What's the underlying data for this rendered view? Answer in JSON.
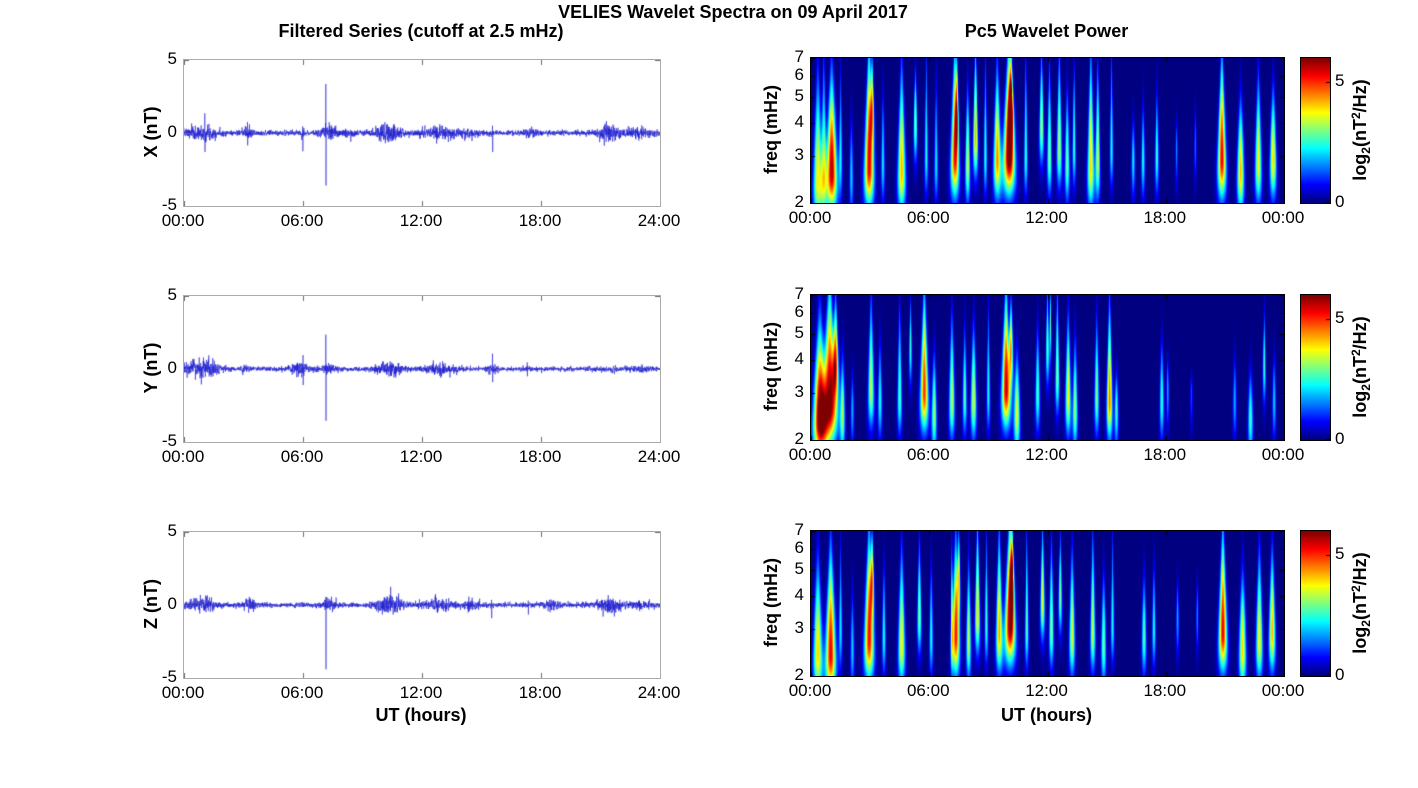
{
  "figure": {
    "title": "VELIES Wavelet Spectra on 09 April 2017"
  },
  "left_column": {
    "title": "Filtered Series (cutoff at 2.5 mHz)",
    "xlabel": "UT (hours)",
    "xticks": [
      "00:00",
      "06:00",
      "12:00",
      "18:00",
      "24:00"
    ],
    "yticks": [
      "5",
      "0",
      "-5"
    ],
    "ylim_nT": [
      -5,
      5
    ],
    "line_color": "#1d1dd0"
  },
  "right_column": {
    "title": "Pc5 Wavelet Power",
    "xlabel": "UT (hours)",
    "xticks": [
      "00:00",
      "06:00",
      "12:00",
      "18:00",
      "00:00"
    ],
    "ylabel": "freq (mHz)",
    "yticks": [
      "7",
      "6",
      "5",
      "4",
      "3",
      "2"
    ],
    "freq_range_mhz": [
      2,
      7
    ],
    "yscale": "log",
    "colorbar": {
      "ticks": [
        "5",
        "0"
      ],
      "tick_values": [
        5,
        0
      ],
      "clim": [
        0,
        6
      ],
      "colormap": "jet",
      "label_parts": {
        "base": "log",
        "sub": "2",
        "mid": "(nT",
        "sup": "2",
        "tail": "/Hz)"
      }
    }
  },
  "chart_data": [
    {
      "name": "X filtered series",
      "type": "line",
      "component": "X",
      "ylabel": "X (nT)",
      "ylim": [
        -5,
        5
      ],
      "x_range_hours": [
        0,
        24
      ],
      "noise_std_nT": 0.085,
      "bursts_t_sigma_amp": [
        [
          0.9,
          0.5,
          0.22
        ],
        [
          3.2,
          0.15,
          0.18
        ],
        [
          6.0,
          0.05,
          0.12
        ],
        [
          7.3,
          0.25,
          0.22
        ],
        [
          8.3,
          0.2,
          0.12
        ],
        [
          10.4,
          0.45,
          0.28
        ],
        [
          12.9,
          0.6,
          0.15
        ],
        [
          14.3,
          0.3,
          0.12
        ],
        [
          17.5,
          0.3,
          0.08
        ],
        [
          21.4,
          0.4,
          0.24
        ],
        [
          22.9,
          0.5,
          0.12
        ]
      ],
      "spikes_t_up_down_nT": [
        [
          1.05,
          1.35,
          -1.3
        ],
        [
          3.2,
          0.75,
          -0.85
        ],
        [
          5.98,
          0.45,
          -1.25
        ],
        [
          7.15,
          3.35,
          -3.6
        ],
        [
          15.55,
          0.5,
          -1.3
        ]
      ]
    },
    {
      "name": "Y filtered series",
      "type": "line",
      "component": "Y",
      "ylabel": "Y (nT)",
      "ylim": [
        -5,
        5
      ],
      "x_range_hours": [
        0,
        24
      ],
      "noise_std_nT": 0.075,
      "bursts_t_sigma_amp": [
        [
          0.9,
          0.55,
          0.35
        ],
        [
          3.1,
          0.2,
          0.1
        ],
        [
          5.8,
          0.3,
          0.18
        ],
        [
          7.3,
          0.25,
          0.15
        ],
        [
          10.4,
          0.4,
          0.22
        ],
        [
          12.9,
          0.6,
          0.15
        ],
        [
          15.5,
          0.15,
          0.15
        ],
        [
          21.5,
          0.3,
          0.06
        ],
        [
          23.0,
          0.4,
          0.06
        ]
      ],
      "spikes_t_up_down_nT": [
        [
          6.0,
          0.95,
          -1.1
        ],
        [
          7.15,
          2.35,
          -3.55
        ],
        [
          15.55,
          1.05,
          -0.9
        ],
        [
          17.3,
          0.45,
          -0.5
        ]
      ]
    },
    {
      "name": "Z filtered series",
      "type": "line",
      "component": "Z",
      "ylabel": "Z (nT)",
      "ylim": [
        -5,
        5
      ],
      "x_range_hours": [
        0,
        24
      ],
      "noise_std_nT": 0.085,
      "bursts_t_sigma_amp": [
        [
          0.9,
          0.5,
          0.2
        ],
        [
          3.3,
          0.2,
          0.2
        ],
        [
          7.3,
          0.25,
          0.2
        ],
        [
          10.4,
          0.45,
          0.3
        ],
        [
          12.8,
          0.5,
          0.15
        ],
        [
          14.4,
          0.3,
          0.12
        ],
        [
          18.5,
          0.25,
          0.15
        ],
        [
          21.4,
          0.4,
          0.22
        ],
        [
          22.9,
          0.4,
          0.1
        ]
      ],
      "spikes_t_up_down_nT": [
        [
          7.15,
          0.55,
          -4.4
        ],
        [
          15.5,
          0.35,
          -0.9
        ],
        [
          17.35,
          0.3,
          -0.65
        ]
      ]
    },
    {
      "name": "X Pc5 wavelet power",
      "type": "heatmap",
      "component": "X",
      "ylabel": "freq (mHz)",
      "freq_range_mhz": [
        2,
        7
      ],
      "x_range_hours": [
        0,
        24
      ],
      "power_clim_log2": [
        0,
        6
      ],
      "events_t_fpeak_power_width_ftop": [
        [
          0.35,
          2.4,
          3.8,
          0.18,
          5.5
        ],
        [
          0.65,
          2.6,
          3.0,
          0.12,
          6.5
        ],
        [
          1.05,
          2.6,
          5.8,
          0.22,
          5.5
        ],
        [
          1.5,
          3.0,
          2.2,
          0.08,
          6.0
        ],
        [
          2.05,
          2.5,
          2.0,
          0.08,
          4.0
        ],
        [
          2.95,
          2.7,
          5.4,
          0.2,
          7.2
        ],
        [
          3.1,
          4.6,
          3.6,
          0.12,
          7.0
        ],
        [
          3.65,
          2.8,
          2.2,
          0.08,
          5.0
        ],
        [
          4.6,
          2.6,
          4.2,
          0.16,
          6.0
        ],
        [
          5.3,
          4.0,
          3.2,
          0.1,
          6.0
        ],
        [
          5.85,
          3.0,
          2.4,
          0.08,
          7.2
        ],
        [
          6.35,
          2.8,
          2.2,
          0.08,
          5.5
        ],
        [
          7.3,
          2.9,
          5.0,
          0.18,
          7.2
        ],
        [
          7.4,
          4.3,
          3.8,
          0.1,
          7.0
        ],
        [
          7.95,
          2.8,
          3.6,
          0.1,
          5.0
        ],
        [
          8.35,
          3.5,
          4.2,
          0.12,
          7.2
        ],
        [
          8.85,
          3.0,
          2.5,
          0.08,
          6.5
        ],
        [
          9.45,
          2.9,
          4.4,
          0.16,
          6.0
        ],
        [
          10.05,
          3.0,
          6.2,
          0.26,
          7.2
        ],
        [
          10.15,
          4.5,
          4.6,
          0.14,
          7.0
        ],
        [
          10.9,
          3.0,
          2.6,
          0.08,
          7.0
        ],
        [
          11.7,
          3.9,
          3.4,
          0.12,
          7.0
        ],
        [
          12.1,
          3.0,
          3.2,
          0.1,
          6.0
        ],
        [
          12.6,
          3.2,
          3.4,
          0.12,
          7.0
        ],
        [
          13.0,
          2.8,
          3.0,
          0.1,
          5.0
        ],
        [
          13.35,
          3.2,
          2.6,
          0.08,
          6.5
        ],
        [
          14.2,
          2.7,
          4.0,
          0.14,
          7.0
        ],
        [
          14.55,
          2.9,
          3.6,
          0.1,
          6.0
        ],
        [
          15.25,
          3.2,
          2.4,
          0.08,
          7.0
        ],
        [
          16.35,
          2.9,
          2.2,
          0.08,
          4.0
        ],
        [
          16.85,
          2.9,
          2.4,
          0.08,
          4.5
        ],
        [
          17.55,
          3.0,
          2.6,
          0.08,
          5.0
        ],
        [
          18.55,
          3.2,
          1.6,
          0.06,
          4.0
        ],
        [
          19.5,
          3.3,
          1.4,
          0.06,
          4.5
        ],
        [
          20.85,
          2.9,
          5.4,
          0.18,
          6.5
        ],
        [
          21.8,
          2.6,
          4.2,
          0.14,
          4.5
        ],
        [
          22.7,
          2.8,
          3.8,
          0.14,
          5.5
        ],
        [
          23.45,
          2.9,
          4.0,
          0.14,
          5.0
        ]
      ]
    },
    {
      "name": "Y Pc5 wavelet power",
      "type": "heatmap",
      "component": "Y",
      "ylabel": "freq (mHz)",
      "freq_range_mhz": [
        2,
        7
      ],
      "x_range_hours": [
        0,
        24
      ],
      "power_clim_log2": [
        0,
        6
      ],
      "events_t_fpeak_power_width_ftop": [
        [
          0.45,
          2.4,
          6.0,
          0.25,
          5.0
        ],
        [
          0.95,
          2.7,
          6.0,
          0.3,
          6.8
        ],
        [
          1.25,
          3.9,
          4.4,
          0.15,
          6.5
        ],
        [
          1.6,
          2.5,
          3.0,
          0.1,
          4.0
        ],
        [
          2.1,
          2.6,
          1.8,
          0.07,
          3.5
        ],
        [
          3.05,
          3.1,
          3.4,
          0.14,
          6.5
        ],
        [
          3.5,
          2.8,
          2.4,
          0.09,
          4.5
        ],
        [
          4.5,
          2.9,
          2.8,
          0.1,
          6.0
        ],
        [
          5.05,
          4.5,
          2.6,
          0.09,
          6.5
        ],
        [
          5.75,
          3.0,
          5.0,
          0.18,
          6.8
        ],
        [
          6.25,
          2.5,
          3.2,
          0.1,
          4.0
        ],
        [
          7.15,
          2.8,
          3.4,
          0.12,
          5.5
        ],
        [
          7.8,
          2.9,
          2.8,
          0.09,
          5.0
        ],
        [
          8.25,
          2.8,
          3.6,
          0.12,
          5.0
        ],
        [
          9.0,
          3.0,
          2.4,
          0.08,
          6.0
        ],
        [
          9.9,
          3.1,
          5.6,
          0.2,
          6.8
        ],
        [
          10.15,
          4.4,
          4.2,
          0.12,
          6.5
        ],
        [
          10.45,
          2.5,
          3.6,
          0.12,
          4.0
        ],
        [
          11.5,
          3.0,
          2.8,
          0.1,
          5.0
        ],
        [
          12.0,
          4.5,
          3.0,
          0.1,
          7.2
        ],
        [
          12.15,
          5.5,
          2.8,
          0.08,
          7.2
        ],
        [
          12.5,
          3.5,
          3.2,
          0.1,
          7.0
        ],
        [
          13.05,
          2.9,
          3.8,
          0.12,
          5.5
        ],
        [
          13.4,
          2.6,
          3.2,
          0.1,
          4.5
        ],
        [
          14.5,
          2.9,
          3.0,
          0.1,
          5.5
        ],
        [
          15.15,
          2.8,
          4.6,
          0.12,
          6.0
        ],
        [
          15.5,
          2.6,
          2.6,
          0.08,
          3.5
        ],
        [
          17.8,
          2.8,
          2.6,
          0.09,
          4.5
        ],
        [
          18.1,
          3.1,
          1.8,
          0.06,
          4.0
        ],
        [
          19.3,
          3.0,
          1.2,
          0.06,
          3.5
        ],
        [
          21.5,
          2.8,
          1.8,
          0.08,
          4.0
        ],
        [
          22.3,
          2.4,
          2.6,
          0.1,
          3.5
        ],
        [
          23.0,
          3.8,
          2.6,
          0.08,
          5.8
        ],
        [
          23.5,
          2.8,
          2.0,
          0.08,
          4.0
        ]
      ]
    },
    {
      "name": "Z Pc5 wavelet power",
      "type": "heatmap",
      "component": "Z",
      "ylabel": "freq (mHz)",
      "freq_range_mhz": [
        2,
        7
      ],
      "x_range_hours": [
        0,
        24
      ],
      "power_clim_log2": [
        0,
        6
      ],
      "events_t_fpeak_power_width_ftop": [
        [
          0.35,
          2.4,
          4.0,
          0.18,
          5.0
        ],
        [
          1.0,
          2.4,
          5.4,
          0.2,
          5.5
        ],
        [
          1.5,
          3.0,
          2.2,
          0.08,
          6.0
        ],
        [
          2.1,
          2.5,
          2.0,
          0.08,
          4.0
        ],
        [
          2.95,
          2.7,
          5.2,
          0.2,
          6.5
        ],
        [
          3.1,
          4.7,
          3.8,
          0.12,
          6.8
        ],
        [
          3.7,
          2.8,
          2.4,
          0.08,
          5.0
        ],
        [
          4.6,
          2.6,
          3.8,
          0.14,
          5.5
        ],
        [
          5.5,
          3.4,
          3.2,
          0.1,
          6.0
        ],
        [
          6.1,
          2.8,
          2.4,
          0.08,
          5.0
        ],
        [
          7.15,
          3.0,
          3.0,
          0.05,
          7.3
        ],
        [
          7.35,
          2.8,
          5.2,
          0.16,
          6.0
        ],
        [
          7.5,
          4.8,
          3.4,
          0.1,
          7.0
        ],
        [
          8.0,
          2.7,
          3.4,
          0.1,
          5.0
        ],
        [
          8.45,
          3.4,
          4.0,
          0.12,
          7.2
        ],
        [
          8.9,
          3.1,
          2.6,
          0.08,
          6.5
        ],
        [
          9.55,
          2.9,
          4.2,
          0.14,
          6.5
        ],
        [
          10.1,
          3.1,
          6.0,
          0.24,
          7.2
        ],
        [
          10.2,
          4.7,
          4.4,
          0.12,
          7.0
        ],
        [
          10.95,
          3.0,
          2.8,
          0.08,
          7.0
        ],
        [
          11.75,
          3.8,
          3.6,
          0.12,
          7.0
        ],
        [
          12.2,
          3.0,
          3.2,
          0.1,
          6.0
        ],
        [
          12.65,
          4.0,
          3.0,
          0.1,
          6.5
        ],
        [
          13.25,
          2.8,
          3.6,
          0.12,
          5.5
        ],
        [
          14.3,
          2.9,
          3.4,
          0.11,
          6.5
        ],
        [
          14.85,
          2.6,
          3.0,
          0.1,
          4.5
        ],
        [
          15.3,
          3.1,
          2.4,
          0.08,
          6.5
        ],
        [
          16.9,
          2.8,
          2.8,
          0.1,
          4.5
        ],
        [
          17.4,
          3.0,
          2.4,
          0.08,
          5.0
        ],
        [
          18.6,
          3.3,
          1.8,
          0.07,
          4.5
        ],
        [
          19.6,
          3.4,
          1.6,
          0.06,
          4.5
        ],
        [
          20.9,
          2.9,
          5.4,
          0.18,
          6.5
        ],
        [
          21.9,
          2.5,
          4.0,
          0.14,
          4.5
        ],
        [
          22.75,
          2.7,
          3.8,
          0.14,
          5.5
        ],
        [
          23.4,
          2.9,
          4.2,
          0.14,
          5.5
        ]
      ]
    }
  ]
}
